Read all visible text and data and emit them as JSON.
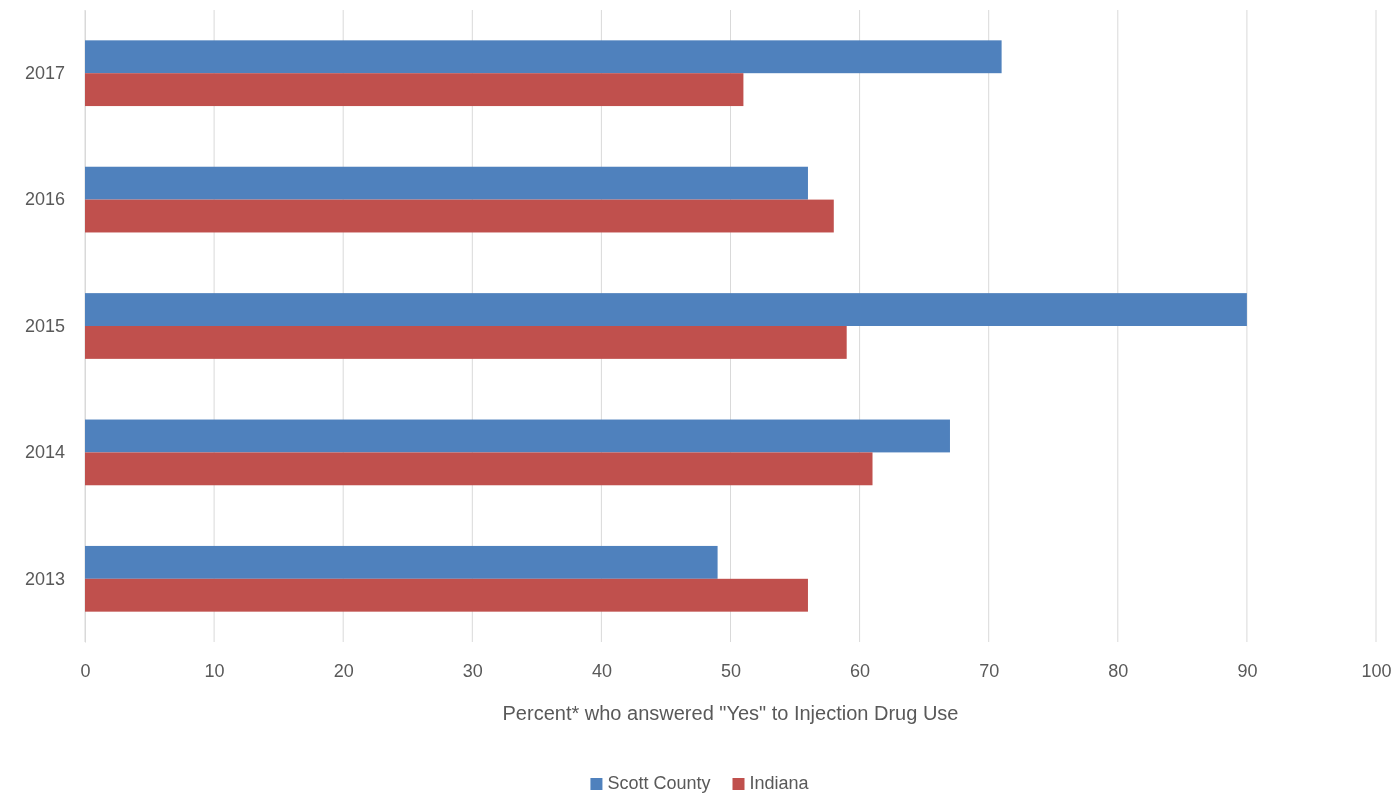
{
  "chart_data": {
    "type": "bar",
    "orientation": "horizontal",
    "xlabel": "Percent* who answered \"Yes\" to Injection Drug Use",
    "categories": [
      "2017",
      "2016",
      "2015",
      "2014",
      "2013"
    ],
    "series": [
      {
        "name": "Scott County",
        "color": "#4f81bd",
        "values": [
          71,
          56,
          90,
          67,
          49
        ]
      },
      {
        "name": "Indiana",
        "color": "#c0504d",
        "values": [
          51,
          58,
          59,
          61,
          56
        ]
      }
    ],
    "xlim": [
      0,
      100
    ],
    "xticks": [
      0,
      10,
      20,
      30,
      40,
      50,
      60,
      70,
      80,
      90,
      100
    ],
    "grid": "x",
    "legend": "bottom"
  }
}
